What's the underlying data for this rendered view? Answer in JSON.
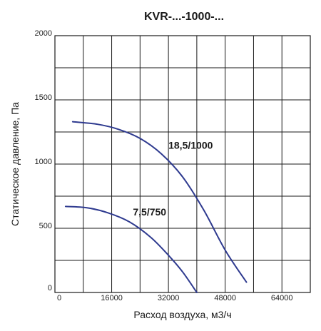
{
  "chart_data": {
    "type": "line",
    "title": "KVR-...-1000-...",
    "xlabel": "Расход воздуха, м3/ч",
    "ylabel": "Статическое давление, Па",
    "xlim": [
      0,
      72000
    ],
    "ylim": [
      0,
      2000
    ],
    "grid": true,
    "x_grid_step": 8000,
    "y_grid_step": 250,
    "x_ticks": [
      {
        "value": 0,
        "label": "0"
      },
      {
        "value": 16000,
        "label": "16000"
      },
      {
        "value": 32000,
        "label": "32000"
      },
      {
        "value": 48000,
        "label": "48000"
      },
      {
        "value": 64000,
        "label": "64000"
      }
    ],
    "y_ticks": [
      {
        "value": 0,
        "label": "0"
      },
      {
        "value": 500,
        "label": "500"
      },
      {
        "value": 1000,
        "label": "1000"
      },
      {
        "value": 1500,
        "label": "1500"
      },
      {
        "value": 2000,
        "label": "2000"
      }
    ],
    "series": [
      {
        "name": "18,5/1000",
        "color": "#2e3a8f",
        "label_at": {
          "x": 32000,
          "y": 1120
        },
        "x": [
          5000,
          12000,
          18000,
          24000,
          30000,
          36000,
          42000,
          48000,
          54000
        ],
        "y": [
          1330,
          1310,
          1270,
          1200,
          1080,
          900,
          640,
          330,
          80
        ]
      },
      {
        "name": "7,5/750",
        "color": "#2e3a8f",
        "label_at": {
          "x": 22000,
          "y": 600
        },
        "x": [
          3000,
          9000,
          15000,
          21000,
          27000,
          32000,
          36000,
          40000
        ],
        "y": [
          670,
          660,
          620,
          550,
          430,
          290,
          160,
          0
        ]
      }
    ]
  }
}
